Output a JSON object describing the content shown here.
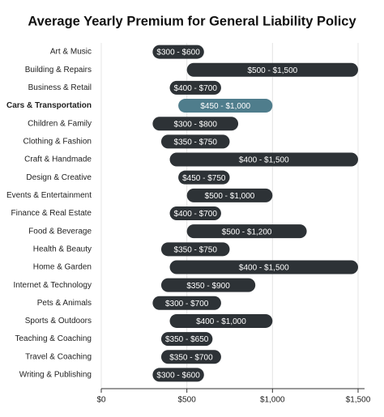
{
  "chart_data": {
    "type": "range_bar",
    "title": "Average Yearly Premium for General Liability Policy",
    "categories": [
      "Art & Music",
      "Building & Repairs",
      "Business & Retail",
      "Cars & Transportation",
      "Children & Family",
      "Clothing & Fashion",
      "Craft & Handmade",
      "Design & Creative",
      "Events & Entertainment",
      "Finance & Real Estate",
      "Food & Beverage",
      "Health & Beauty",
      "Home & Garden",
      "Internet & Technology",
      "Pets & Animals",
      "Sports & Outdoors",
      "Teaching & Coaching",
      "Travel & Coaching",
      "Writing & Publishing"
    ],
    "low": [
      300,
      500,
      400,
      450,
      300,
      350,
      400,
      450,
      500,
      400,
      500,
      350,
      400,
      350,
      300,
      400,
      350,
      350,
      300
    ],
    "high": [
      600,
      1500,
      700,
      1000,
      800,
      750,
      1500,
      750,
      1000,
      700,
      1200,
      750,
      1500,
      900,
      700,
      1000,
      650,
      700,
      600
    ],
    "value_labels": [
      "$300 - $600",
      "$500 - $1,500",
      "$400 - $700",
      "$450 - $1,000",
      "$300 - $800",
      "$350 - $750",
      "$400 - $1,500",
      "$450 - $750",
      "$500 - $1,000",
      "$400 - $700",
      "$500 - $1,200",
      "$350 - $750",
      "$400 - $1,500",
      "$350 - $900",
      "$300 - $700",
      "$400 - $1,000",
      "$350 - $650",
      "$350 - $700",
      "$300 - $600"
    ],
    "color": "#2d3236",
    "highlight_color": "#4f7d8c",
    "highlight": 3,
    "xlim": [
      0,
      1500
    ],
    "xticks": [
      {
        "value": 0,
        "label": "$0"
      },
      {
        "value": 500,
        "label": "$500"
      },
      {
        "value": 1000,
        "label": "$1,000"
      },
      {
        "value": 1500,
        "label": "$1,500"
      }
    ],
    "grid": true
  }
}
